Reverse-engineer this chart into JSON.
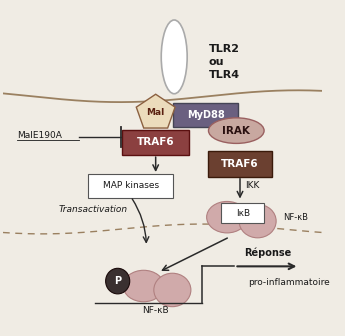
{
  "bg_color": "#f0ece4",
  "tlr_label": "TLR2\nou\nTLR4",
  "mal_label": "Mal",
  "myd88_label": "MyD88",
  "traf6_left_label": "TRAF6",
  "traf6_right_label": "TRAF6",
  "irak_label": "IRAK",
  "map_kinases_label": "MAP kinases",
  "ikk_label": "IKK",
  "ikb_label": "IκB",
  "nfkb_label1": "NF-κB",
  "nfkb_label2": "NF-κB",
  "transactivation_label": "Transactivation",
  "reponse_label": "Réponse",
  "pro_inflammatoire_label": "pro-inflammatoire",
  "male190a_label": "MalE190A",
  "p_label": "P",
  "traf6_left_color": "#8b4040",
  "traf6_right_color": "#6b4030",
  "myd88_color": "#6a6080",
  "irak_color": "#c8a8a0",
  "mal_color": "#ecdcbc",
  "nfkb_blob_color": "#d0aaaa",
  "p_circle_color": "#3a3030",
  "arrow_color": "#2a2a2a",
  "membrane_color": "#9a8060",
  "text_color": "#1a1a1a"
}
